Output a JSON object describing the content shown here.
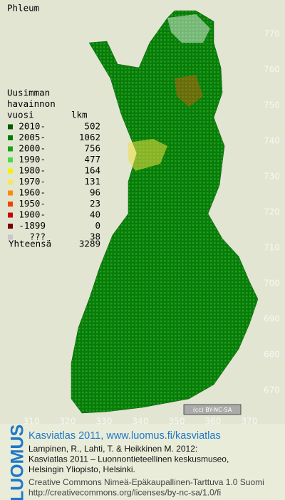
{
  "title": "Phleum",
  "legend": {
    "heading": [
      "Uusimman",
      "havainnon"
    ],
    "col_year": "vuosi",
    "col_count": "lkm",
    "rows": [
      {
        "label": "2010-",
        "count": 502,
        "color": "#005a00"
      },
      {
        "label": "2005-",
        "count": 1062,
        "color": "#007d00"
      },
      {
        "label": "2000-",
        "count": 756,
        "color": "#1aa41a"
      },
      {
        "label": "1990-",
        "count": 477,
        "color": "#48dc48"
      },
      {
        "label": "1980-",
        "count": 164,
        "color": "#f2f200"
      },
      {
        "label": "1970-",
        "count": 131,
        "color": "#f4e85a"
      },
      {
        "label": "1960-",
        "count": 96,
        "color": "#ff8c00"
      },
      {
        "label": "1950-",
        "count": 23,
        "color": "#ee4400"
      },
      {
        "label": "1900-",
        "count": 40,
        "color": "#cc0000"
      },
      {
        "label": "-1899",
        "count": 0,
        "color": "#7a0000"
      },
      {
        "label": "???",
        "count": 38,
        "color": "#c8c8c8"
      }
    ],
    "total_label": "Yhteensä",
    "total": 3289
  },
  "y_labels": [
    770,
    760,
    750,
    740,
    730,
    720,
    710,
    700,
    690,
    680,
    670
  ],
  "x_labels": [
    310,
    320,
    330,
    340,
    350,
    360,
    370
  ],
  "license_badge": "(cc) BY-NC-SA",
  "footer": {
    "logo": "LUOMUS",
    "heading": "Kasviatlas 2011, www.luomus.fi/kasviatlas",
    "citation": [
      "Lampinen, R., Lahti, T. & Heikkinen M. 2012:",
      "Kasviatlas 2011 – Luonnontieteellinen keskusmuseo,",
      "Helsingin Yliopisto, Helsinki."
    ],
    "license": [
      "Creative Commons Nimeä-Epäkaupallinen-Tarttuva 1.0 Suomi",
      "http://creativecommons.org/licenses/by-nc-sa/1.0/fi"
    ]
  }
}
